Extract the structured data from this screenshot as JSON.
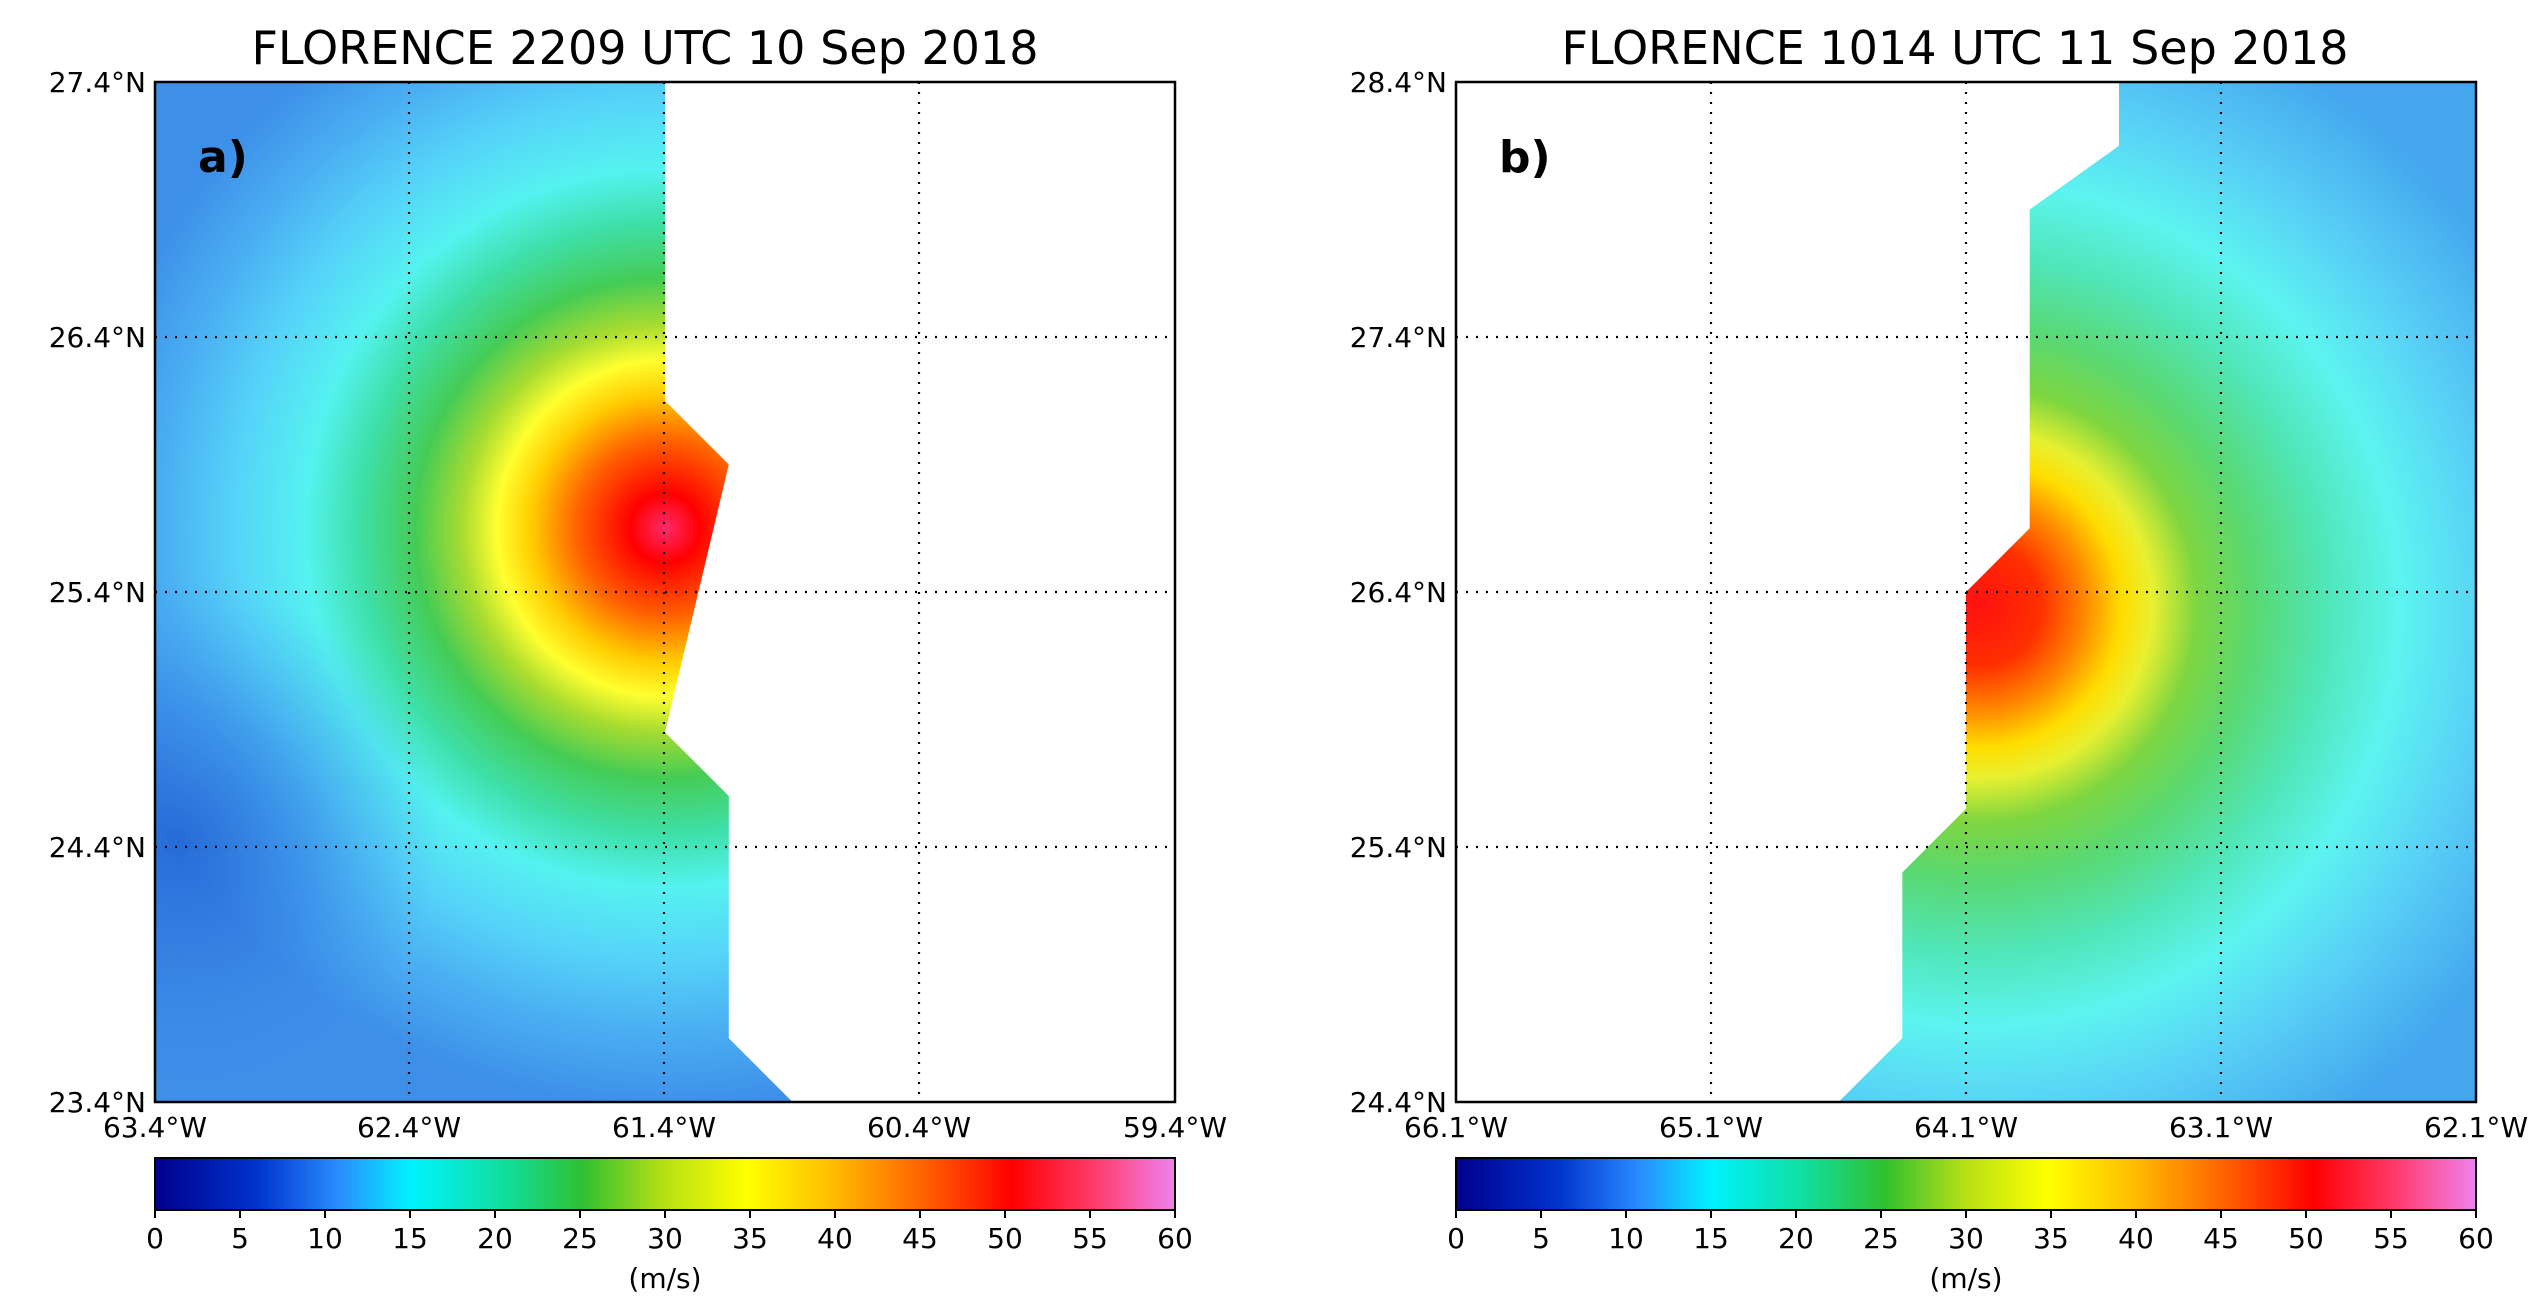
{
  "panels": [
    {
      "id": "a",
      "title": "FLORENCE 2209 UTC 10 Sep 2018",
      "label": "a)",
      "lat_ticks": [
        "27.4°N",
        "26.4°N",
        "25.4°N",
        "24.4°N",
        "23.4°N"
      ],
      "lon_ticks": [
        "63.4°W",
        "62.4°W",
        "61.4°W",
        "60.4°W",
        "59.4°W"
      ],
      "lat_range": [
        23.4,
        27.4
      ],
      "lon_range": [
        -63.4,
        -59.4
      ],
      "storm_center": {
        "lon": -61.4,
        "lat": 25.65
      },
      "data_boundary": [
        [
          -63.4,
          23.4
        ],
        [
          -60.9,
          23.4
        ],
        [
          -61.15,
          23.65
        ],
        [
          -61.15,
          24.6
        ],
        [
          -61.4,
          24.85
        ],
        [
          -61.15,
          25.9
        ],
        [
          -61.4,
          26.15
        ],
        [
          -61.4,
          27.4
        ],
        [
          -63.4,
          27.4
        ]
      ],
      "colorbar": {
        "ticks": [
          "0",
          "5",
          "10",
          "15",
          "20",
          "25",
          "30",
          "35",
          "40",
          "45",
          "50",
          "55",
          "60"
        ],
        "unit": "(m/s)"
      }
    },
    {
      "id": "b",
      "title": "FLORENCE 1014 UTC 11 Sep 2018",
      "label": "b)",
      "lat_ticks": [
        "28.4°N",
        "27.4°N",
        "26.4°N",
        "25.4°N",
        "24.4°N"
      ],
      "lon_ticks": [
        "66.1°W",
        "65.1°W",
        "64.1°W",
        "63.1°W",
        "62.1°W"
      ],
      "lat_range": [
        24.4,
        28.4
      ],
      "lon_range": [
        -66.1,
        -62.1
      ],
      "storm_center": {
        "lon": -64.05,
        "lat": 26.35
      },
      "data_boundary": [
        [
          -64.35,
          24.4
        ],
        [
          -62.1,
          24.4
        ],
        [
          -62.1,
          28.4
        ],
        [
          -63.5,
          28.4
        ],
        [
          -63.5,
          28.15
        ],
        [
          -63.85,
          27.9
        ],
        [
          -63.85,
          26.65
        ],
        [
          -64.1,
          26.4
        ],
        [
          -64.1,
          25.55
        ],
        [
          -64.35,
          25.3
        ],
        [
          -64.35,
          24.65
        ],
        [
          -64.6,
          24.4
        ]
      ],
      "colorbar": {
        "ticks": [
          "0",
          "5",
          "10",
          "15",
          "20",
          "25",
          "30",
          "35",
          "40",
          "45",
          "50",
          "55",
          "60"
        ],
        "unit": "(m/s)"
      }
    }
  ]
}
